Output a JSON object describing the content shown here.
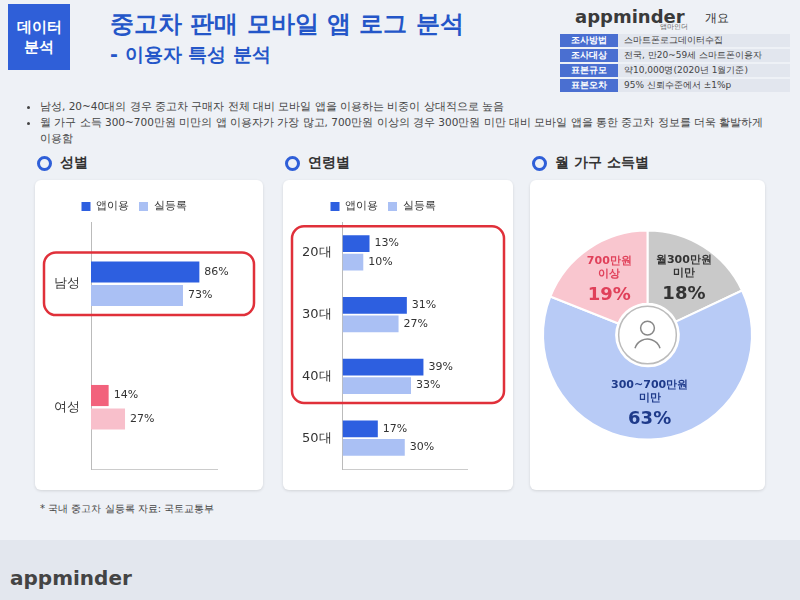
{
  "header": {
    "badge": "데이터 분석",
    "title": "중고차 판매 모바일 앱 로그 분석",
    "subtitle": "- 이용자 특성 분석",
    "brand": "appminder",
    "brand_sub": "앱마인더",
    "overview_label": "개요"
  },
  "overview": [
    {
      "label": "조사방법",
      "value": "스마트폰로그데이터수집"
    },
    {
      "label": "조사대상",
      "value": "전국, 만20~59세 스마트폰이용자"
    },
    {
      "label": "표본규모",
      "value": "약10,000명(2020년 1월기준)"
    },
    {
      "label": "표본오차",
      "value": "95% 신뢰수준에서 ±1%p"
    }
  ],
  "bullets": [
    "남성, 20~40대의 경우 중고차 구매자 전체 대비 모바일 앱을 이용하는 비중이 상대적으로 높음",
    "월 가구 소득 300~700만원 미만의 앱 이용자가 가장 많고, 700만원 이상의 경우 300만원 미만 대비 모바일 앱을 통한 중고차 정보를 더욱 활발하게 이용함"
  ],
  "chart_data": [
    {
      "type": "bar",
      "title": "성별",
      "orientation": "horizontal",
      "categories": [
        "남성",
        "여성"
      ],
      "series": [
        {
          "name": "앱이용",
          "color": "#2d5fe0",
          "colors": [
            "#2d5fe0",
            "#f2627c"
          ],
          "values": [
            86,
            14
          ],
          "value_labels": [
            "86%",
            "14%"
          ]
        },
        {
          "name": "실등록",
          "color": "#aac0f4",
          "colors": [
            "#aac0f4",
            "#f8bfcb"
          ],
          "values": [
            73,
            27
          ],
          "value_labels": [
            "73%",
            "27%"
          ]
        }
      ],
      "xlim": [
        0,
        100
      ],
      "grid": false,
      "legend": "top",
      "data_labels": true,
      "tick_labels": "y"
    },
    {
      "type": "bar",
      "title": "연령별",
      "orientation": "horizontal",
      "categories": [
        "20대",
        "30대",
        "40대",
        "50대"
      ],
      "series": [
        {
          "name": "앱이용",
          "color": "#2d5fe0",
          "values": [
            13,
            31,
            39,
            17
          ],
          "value_labels": [
            "13%",
            "31%",
            "39%",
            "17%"
          ]
        },
        {
          "name": "실등록",
          "color": "#aac0f4",
          "values": [
            10,
            27,
            33,
            30
          ],
          "value_labels": [
            "10%",
            "27%",
            "33%",
            "30%"
          ]
        }
      ],
      "xlim": [
        0,
        60
      ],
      "grid": false,
      "legend": "top",
      "data_labels": true,
      "tick_labels": "y"
    },
    {
      "type": "doughnut",
      "title": "월 가구 소득별",
      "categories": [
        "월300만원 미만",
        "300~700만원 미만",
        "700만원 이상"
      ],
      "values": [
        18,
        63,
        19
      ],
      "value_labels": [
        "18%",
        "63%",
        "19%"
      ],
      "colors": [
        "#c9c9c9",
        "#b8cbf6",
        "#f9c6cf"
      ],
      "data_labels": true
    }
  ],
  "footnote": "* 국내 중고차 실등록 자료: 국토교통부",
  "footer": {
    "brand": "appminder"
  }
}
